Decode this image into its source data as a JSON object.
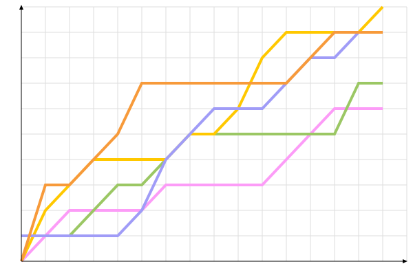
{
  "chart_data": {
    "type": "line",
    "x": [
      0,
      1,
      2,
      3,
      4,
      5,
      6,
      7,
      8,
      9,
      10,
      11,
      12,
      13,
      14,
      15
    ],
    "series": [
      {
        "color": "#fc9cf7",
        "values": [
          0,
          1,
          2,
          2,
          2,
          2,
          3,
          3,
          3,
          3,
          3,
          4,
          5,
          6,
          6,
          6
        ]
      },
      {
        "color": "#9bc764",
        "values": [
          1,
          1,
          1,
          2,
          3,
          3,
          4,
          5,
          5,
          5,
          5,
          5,
          5,
          5,
          7,
          7
        ]
      },
      {
        "color": "#ffc800",
        "values": [
          0,
          2,
          3,
          4,
          4,
          4,
          4,
          5,
          5,
          6,
          8,
          9,
          9,
          9,
          9,
          10
        ]
      },
      {
        "color": "#a09cf7",
        "values": [
          1,
          1,
          1,
          1,
          1,
          2,
          4,
          5,
          6,
          6,
          6,
          7,
          8,
          8,
          9,
          9
        ]
      },
      {
        "color": "#f79a3a",
        "values": [
          0,
          3,
          3,
          4,
          5,
          7,
          7,
          7,
          7,
          7,
          7,
          7,
          8,
          9,
          9,
          9
        ]
      }
    ],
    "xlim": [
      0,
      16
    ],
    "ylim": [
      0,
      10
    ],
    "xticks": [
      0,
      1,
      2,
      3,
      4,
      5,
      6,
      7,
      8,
      9,
      10,
      11,
      12,
      13,
      14,
      15,
      16
    ],
    "yticks": [
      0,
      1,
      2,
      3,
      4,
      5,
      6,
      7,
      8,
      9,
      10
    ],
    "grid": true
  }
}
